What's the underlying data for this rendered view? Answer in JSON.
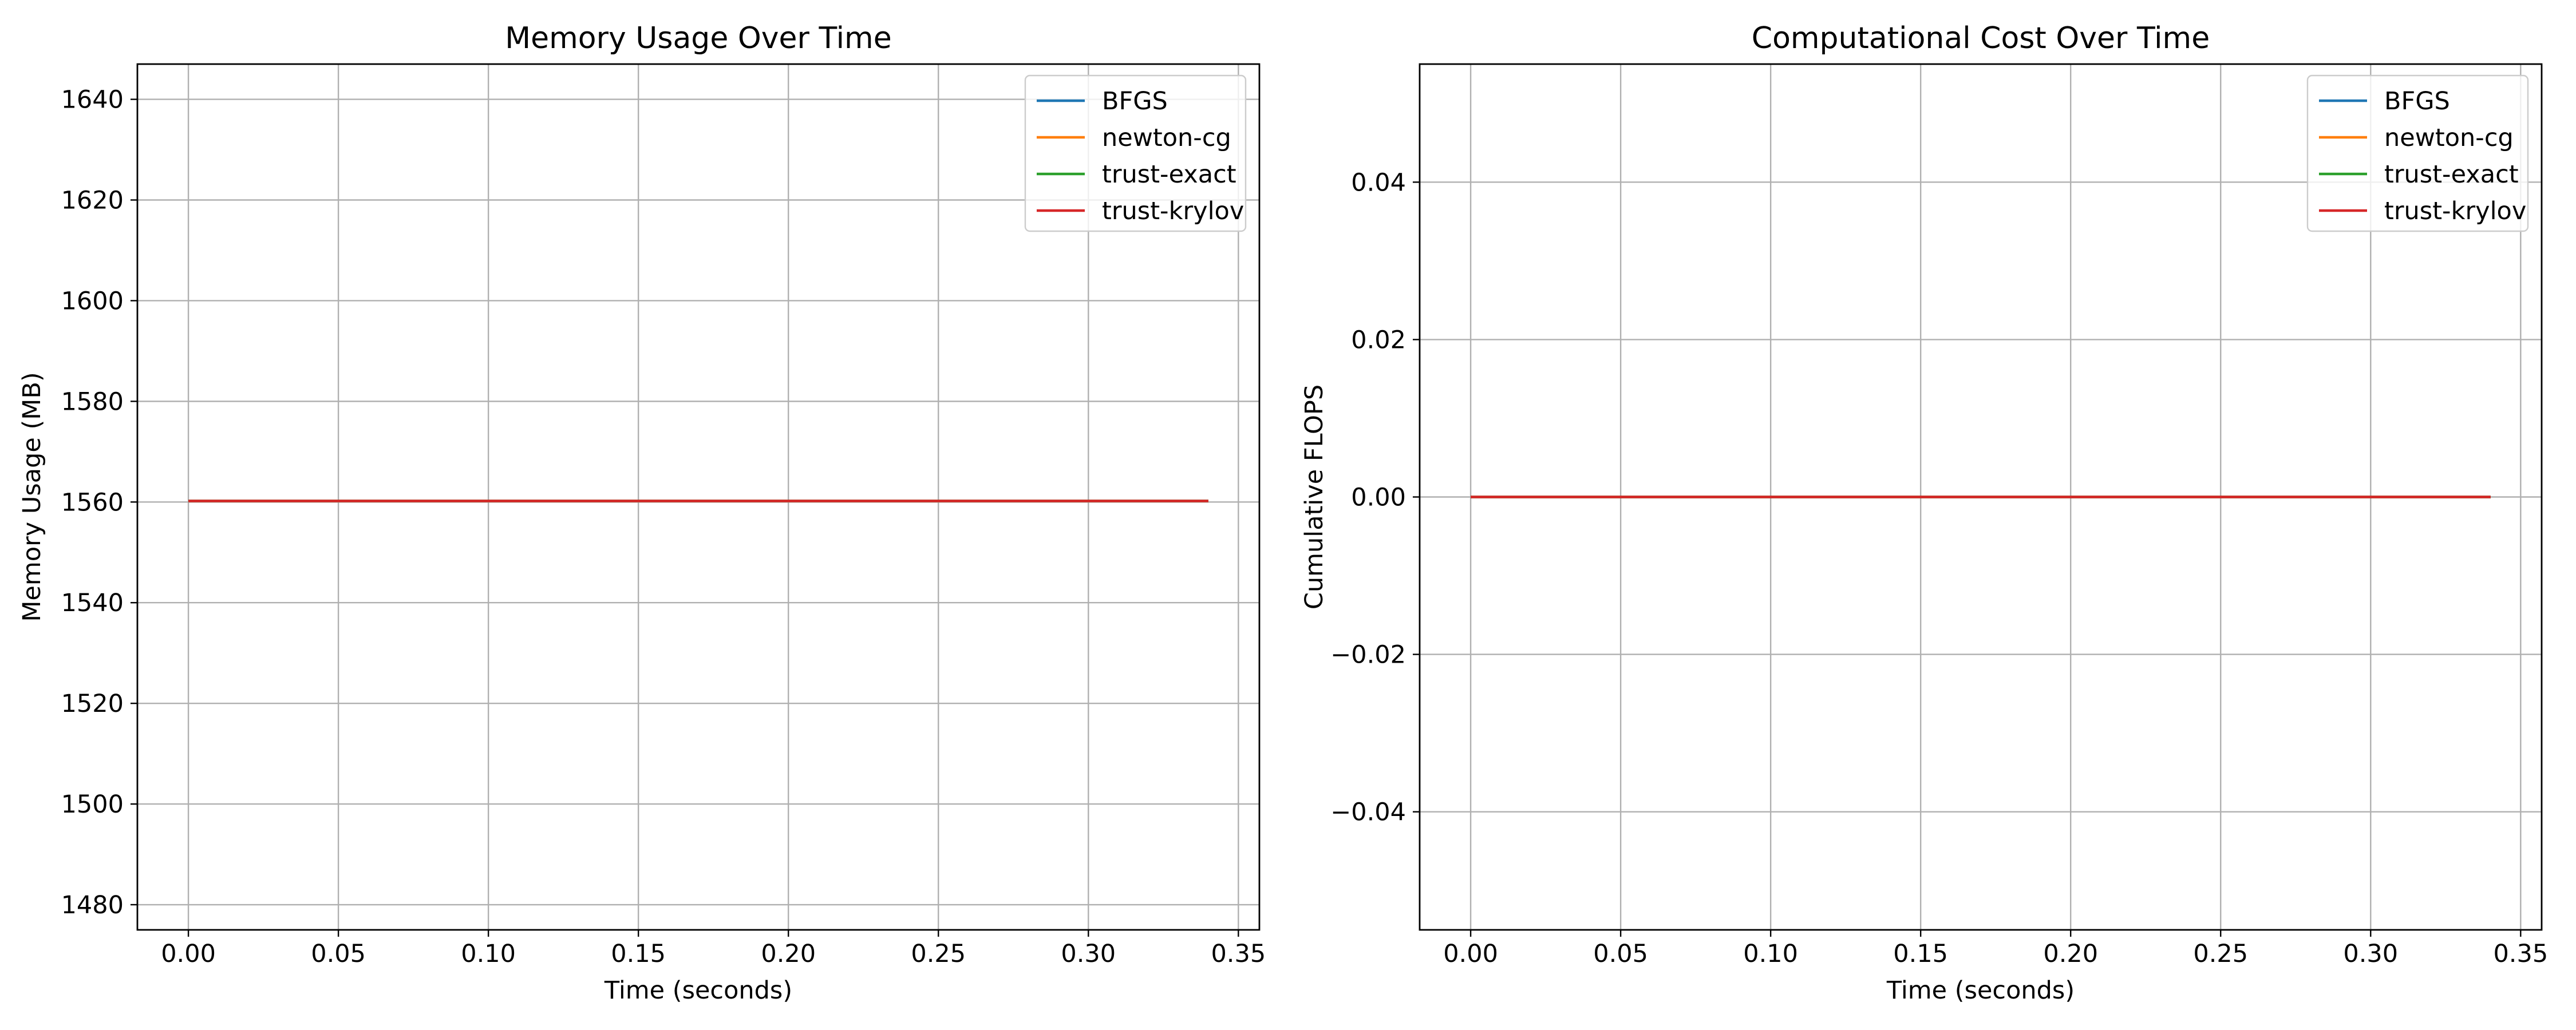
{
  "chart_data": [
    {
      "type": "line",
      "title": "Memory Usage Over Time",
      "xlabel": "Time (seconds)",
      "ylabel": "Memory Usage (MB)",
      "xlim": [
        -0.017,
        0.357
      ],
      "ylim": [
        1475,
        1647
      ],
      "xticks": [
        0.0,
        0.05,
        0.1,
        0.15,
        0.2,
        0.25,
        0.3,
        0.35
      ],
      "xtick_labels": [
        "0.00",
        "0.05",
        "0.10",
        "0.15",
        "0.20",
        "0.25",
        "0.30",
        "0.35"
      ],
      "yticks": [
        1480,
        1500,
        1520,
        1540,
        1560,
        1580,
        1600,
        1620,
        1640
      ],
      "ytick_labels": [
        "1480",
        "1500",
        "1520",
        "1540",
        "1560",
        "1580",
        "1600",
        "1620",
        "1640"
      ],
      "grid": true,
      "legend_position": "top-right",
      "series": [
        {
          "name": "BFGS",
          "color": "#1f77b4",
          "x": [
            0.0,
            0.34
          ],
          "y": [
            1560.2,
            1560.2
          ]
        },
        {
          "name": "newton-cg",
          "color": "#ff7f0e",
          "x": [
            0.0,
            0.34
          ],
          "y": [
            1560.2,
            1560.2
          ]
        },
        {
          "name": "trust-exact",
          "color": "#2ca02c",
          "x": [
            0.0,
            0.34
          ],
          "y": [
            1560.2,
            1560.2
          ]
        },
        {
          "name": "trust-krylov",
          "color": "#d62728",
          "x": [
            0.0,
            0.34
          ],
          "y": [
            1560.2,
            1560.2
          ]
        }
      ]
    },
    {
      "type": "line",
      "title": "Computational Cost Over Time",
      "xlabel": "Time (seconds)",
      "ylabel": "Cumulative FLOPS",
      "xlim": [
        -0.017,
        0.357
      ],
      "ylim": [
        -0.055,
        0.055
      ],
      "xticks": [
        0.0,
        0.05,
        0.1,
        0.15,
        0.2,
        0.25,
        0.3,
        0.35
      ],
      "xtick_labels": [
        "0.00",
        "0.05",
        "0.10",
        "0.15",
        "0.20",
        "0.25",
        "0.30",
        "0.35"
      ],
      "yticks": [
        -0.04,
        -0.02,
        0.0,
        0.02,
        0.04
      ],
      "ytick_labels": [
        "−0.04",
        "−0.02",
        "0.00",
        "0.02",
        "0.04"
      ],
      "grid": true,
      "legend_position": "top-right",
      "series": [
        {
          "name": "BFGS",
          "color": "#1f77b4",
          "x": [
            0.0,
            0.34
          ],
          "y": [
            0.0,
            0.0
          ]
        },
        {
          "name": "newton-cg",
          "color": "#ff7f0e",
          "x": [
            0.0,
            0.34
          ],
          "y": [
            0.0,
            0.0
          ]
        },
        {
          "name": "trust-exact",
          "color": "#2ca02c",
          "x": [
            0.0,
            0.34
          ],
          "y": [
            0.0,
            0.0
          ]
        },
        {
          "name": "trust-krylov",
          "color": "#d62728",
          "x": [
            0.0,
            0.34
          ],
          "y": [
            0.0,
            0.0
          ]
        }
      ]
    }
  ]
}
